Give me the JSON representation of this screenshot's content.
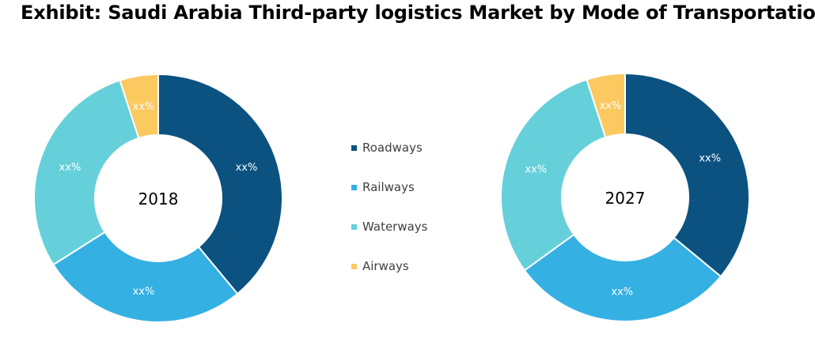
{
  "title": "Exhibit: Saudi Arabia Third-party logistics Market by Mode of Transportation",
  "chart_data": [
    {
      "type": "pie",
      "center_label": "2018",
      "categories": [
        "Roadways",
        "Railways",
        "Waterways",
        "Airways"
      ],
      "values": [
        39,
        27,
        29,
        5
      ],
      "data_labels": [
        "xx%",
        "xx%",
        "xx%",
        "xx%"
      ],
      "colors": [
        "#0b5280",
        "#35b0e3",
        "#66d0da",
        "#fcc960"
      ]
    },
    {
      "type": "pie",
      "center_label": "2027",
      "categories": [
        "Roadways",
        "Railways",
        "Waterways",
        "Airways"
      ],
      "values": [
        36,
        29,
        30,
        5
      ],
      "data_labels": [
        "xx%",
        "xx%",
        "xx%",
        "xx%"
      ],
      "colors": [
        "#0b5280",
        "#35b0e3",
        "#66d0da",
        "#fcc960"
      ]
    }
  ],
  "legend": {
    "placement": "center",
    "items": [
      {
        "label": "Roadways",
        "color": "#0b5280"
      },
      {
        "label": "Railways",
        "color": "#35b0e3"
      },
      {
        "label": "Waterways",
        "color": "#66d0da"
      },
      {
        "label": "Airways",
        "color": "#fcc960"
      }
    ]
  }
}
